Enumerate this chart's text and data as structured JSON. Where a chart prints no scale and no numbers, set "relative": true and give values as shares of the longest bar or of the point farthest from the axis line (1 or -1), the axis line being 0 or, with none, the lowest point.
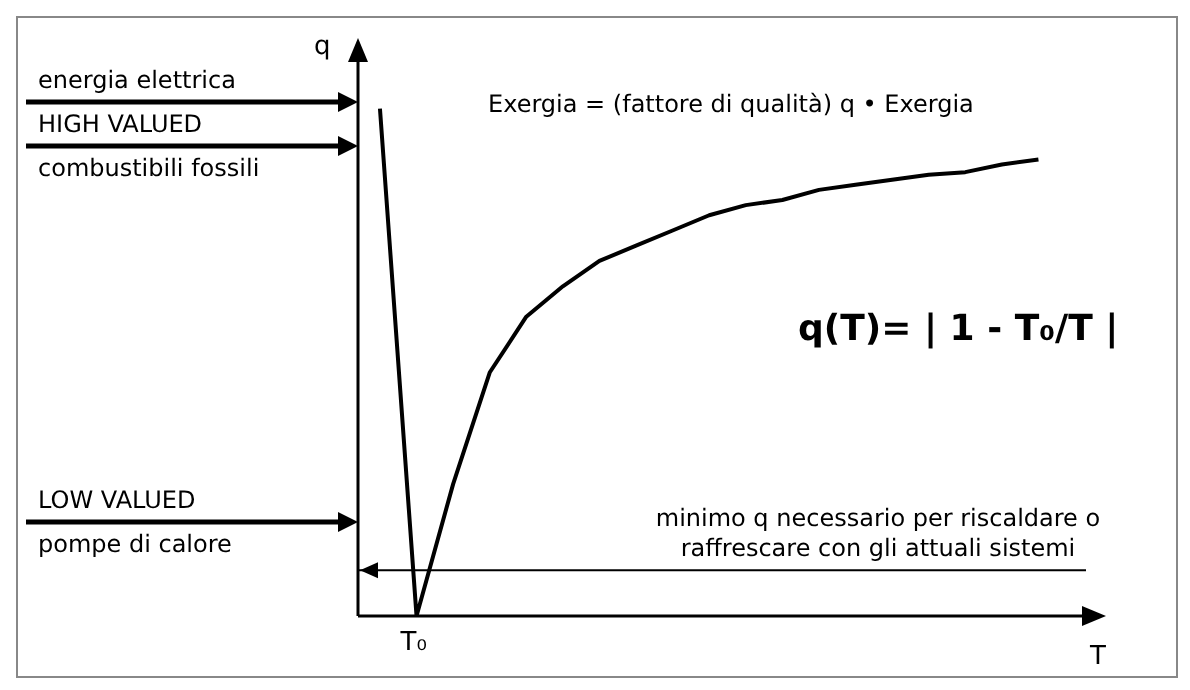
{
  "chart_data": {
    "type": "line",
    "relative": true,
    "xlabel": "T",
    "ylabel": "q",
    "categories": [
      null,
      null,
      null,
      null,
      null,
      null,
      null,
      null,
      null,
      null,
      null,
      null,
      null,
      null,
      null,
      null,
      null,
      null,
      null
    ],
    "series": [
      {
        "color": "#000000",
        "values": [
          1.0,
          0,
          0.26,
          0.48,
          0.59,
          0.65,
          0.7,
          0.73,
          0.76,
          0.79,
          0.81,
          0.82,
          0.84,
          0.85,
          0.86,
          0.87,
          0.875,
          0.89,
          0.9
        ]
      }
    ],
    "marker": "none",
    "line_style": "solid",
    "grid": false,
    "legend": false,
    "ref_lines": [
      {
        "axis": "y",
        "value": 0.09,
        "label": "minimo q necessario per riscaldare o raffrescare con gli attuali sistemi",
        "color": "#000000"
      }
    ],
    "annotations": [
      "energia elettrica",
      "HIGH VALUED",
      "combustibili fossili",
      "LOW VALUED",
      "pompe di calore",
      "Exergia = (fattore di qualità) q • Exergia",
      "q(T)= | 1 - T₀/T |",
      "T₀"
    ]
  }
}
